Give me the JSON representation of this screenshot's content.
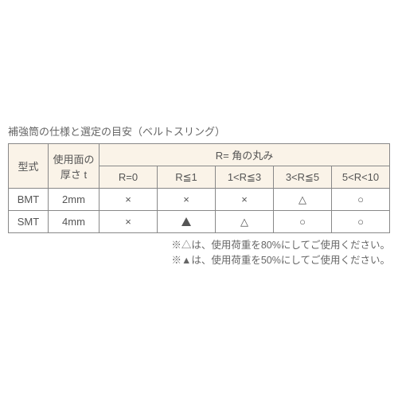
{
  "caption": "補強筒の仕様と選定の目安（ベルトスリング）",
  "headers": {
    "model": "型式",
    "thickness_l1": "使用面の",
    "thickness_l2": "厚さ t",
    "r_group": "R= 角の丸み",
    "r0": "R=0",
    "r1": "R≦1",
    "r2": "1<R≦3",
    "r3": "3<R≦5",
    "r4": "5<R<10"
  },
  "rows": [
    {
      "model": "BMT",
      "thickness": "2mm",
      "c0": "×",
      "c1": "×",
      "c2": "×",
      "c3": "△",
      "c4": "○"
    },
    {
      "model": "SMT",
      "thickness": "4mm",
      "c0": "×",
      "c1": "▲",
      "c2": "△",
      "c3": "○",
      "c4": "○"
    }
  ],
  "notes": {
    "n1": "※△は、使用荷重を80%にしてご使用ください。",
    "n2": "※▲は、使用荷重を50%にしてご使用ください。"
  },
  "colors": {
    "header_bg": "#faf3e8",
    "border": "#888888",
    "text": "#555555",
    "caption_text": "#666666",
    "background": "#ffffff"
  }
}
